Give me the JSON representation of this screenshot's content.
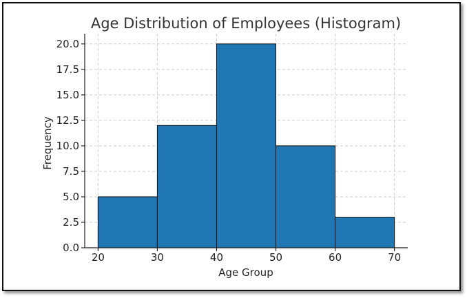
{
  "chart_data": {
    "type": "bar",
    "title": "Age Distribution of Employees (Histogram)",
    "xlabel": "Age Group",
    "ylabel": "Frequency",
    "bins": [
      [
        20,
        30
      ],
      [
        30,
        40
      ],
      [
        40,
        50
      ],
      [
        50,
        60
      ],
      [
        60,
        70
      ]
    ],
    "values": [
      5,
      12,
      20,
      10,
      3
    ],
    "xlim": [
      17.75,
      72.25
    ],
    "ylim": [
      0,
      21
    ],
    "xticks": [
      20,
      30,
      40,
      50,
      60,
      70
    ],
    "yticks": [
      0,
      2.5,
      5,
      7.5,
      10,
      12.5,
      15,
      17.5,
      20
    ],
    "xtick_labels": [
      "20",
      "30",
      "40",
      "50",
      "60",
      "70"
    ],
    "ytick_labels": [
      "0.0",
      "2.5",
      "5.0",
      "7.5",
      "10.0",
      "12.5",
      "15.0",
      "17.5",
      "20.0"
    ],
    "grid": true,
    "colors": {
      "bar": "#2176b4",
      "edge": "#111111",
      "grid": "#cfcfcf"
    }
  }
}
